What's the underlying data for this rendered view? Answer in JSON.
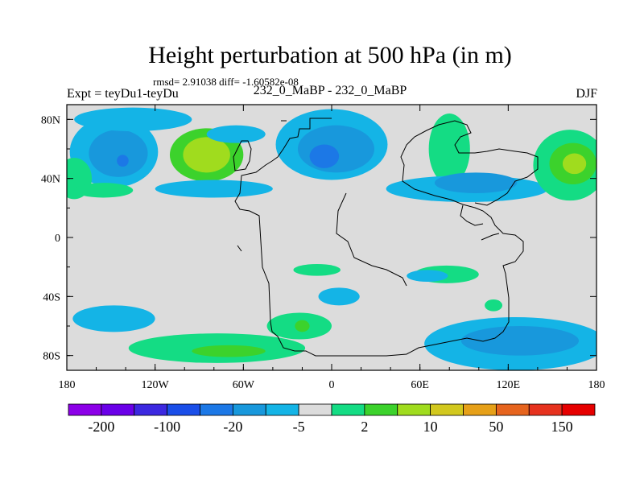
{
  "header": {
    "title": "Height perturbation at 500 hPa (in m)",
    "stats": "rmsd= 2.91038 diff= -1.60582e-08",
    "experiment": "Expt = teyDu1-teyDu",
    "case_label": "232_0_MaBP - 232_0_MaBP",
    "season": "DJF"
  },
  "chart_data": {
    "type": "heatmap",
    "title": "Height perturbation at 500 hPa (in m)",
    "projection": "cylindrical-equidistant",
    "xlim": [
      -180,
      180
    ],
    "ylim": [
      -90,
      90
    ],
    "x_ticks": [
      {
        "value": -180,
        "label": "180"
      },
      {
        "value": -120,
        "label": "120W"
      },
      {
        "value": -60,
        "label": "60W"
      },
      {
        "value": 0,
        "label": "0"
      },
      {
        "value": 60,
        "label": "60E"
      },
      {
        "value": 120,
        "label": "120E"
      },
      {
        "value": 180,
        "label": "180"
      }
    ],
    "y_ticks": [
      {
        "value": 80,
        "label": "80N"
      },
      {
        "value": 40,
        "label": "40N"
      },
      {
        "value": 0,
        "label": "0"
      },
      {
        "value": -40,
        "label": "40S"
      },
      {
        "value": -80,
        "label": "80S"
      }
    ],
    "colorbar": {
      "colors": [
        "#8c00e8",
        "#6a00e8",
        "#3c28e0",
        "#1a4ee8",
        "#1c78e6",
        "#1898dc",
        "#14b4e6",
        "#dcdcdc",
        "#14dc84",
        "#3cd22c",
        "#a0dc1e",
        "#d2c81e",
        "#e6a018",
        "#e6641e",
        "#e6321e",
        "#e60000"
      ],
      "labels": [
        {
          "after_index": 0,
          "text": "-200"
        },
        {
          "after_index": 2,
          "text": "-100"
        },
        {
          "after_index": 4,
          "text": "-20"
        },
        {
          "after_index": 6,
          "text": "-5"
        },
        {
          "after_index": 8,
          "text": "2"
        },
        {
          "after_index": 10,
          "text": "10"
        },
        {
          "after_index": 12,
          "text": "50"
        },
        {
          "after_index": 14,
          "text": "150"
        }
      ]
    },
    "regions": [
      {
        "lon": -148,
        "lat": 58,
        "rlon": 30,
        "rlat": 24,
        "level": 6,
        "name": "nw-pacific-cyan"
      },
      {
        "lon": -145,
        "lat": 57,
        "rlon": 20,
        "rlat": 16,
        "level": 5,
        "name": "nw-pacific-mid"
      },
      {
        "lon": -142,
        "lat": 52,
        "rlon": 4,
        "rlat": 4,
        "level": 4,
        "name": "nw-pacific-core"
      },
      {
        "lon": -135,
        "lat": 80,
        "rlon": 40,
        "rlat": 8,
        "level": 6,
        "name": "arctic-cyan-w"
      },
      {
        "lon": -175,
        "lat": 40,
        "rlon": 12,
        "rlat": 14,
        "level": 8,
        "name": "pacific-west-green"
      },
      {
        "lon": -155,
        "lat": 32,
        "rlon": 20,
        "rlat": 5,
        "level": 8,
        "name": "pacific-green-band"
      },
      {
        "lon": -85,
        "lat": 56,
        "rlon": 25,
        "rlat": 18,
        "level": 9,
        "name": "canada-green"
      },
      {
        "lon": -85,
        "lat": 56,
        "rlon": 16,
        "rlat": 12,
        "level": 10,
        "name": "canada-yellowgreen"
      },
      {
        "lon": -80,
        "lat": 33,
        "rlon": 40,
        "rlat": 6,
        "level": 6,
        "name": "us-cyan-band"
      },
      {
        "lon": -65,
        "lat": 70,
        "rlon": 20,
        "rlat": 6,
        "level": 6,
        "name": "greenland-cyan"
      },
      {
        "lon": 0,
        "lat": 63,
        "rlon": 38,
        "rlat": 24,
        "level": 6,
        "name": "europe-cyan"
      },
      {
        "lon": 3,
        "lat": 60,
        "rlon": 26,
        "rlat": 16,
        "level": 5,
        "name": "europe-mid"
      },
      {
        "lon": -5,
        "lat": 55,
        "rlon": 10,
        "rlat": 8,
        "level": 4,
        "name": "europe-core"
      },
      {
        "lon": 80,
        "lat": 60,
        "rlon": 14,
        "rlat": 24,
        "level": 8,
        "name": "siberia-green"
      },
      {
        "lon": 92,
        "lat": 33,
        "rlon": 55,
        "rlat": 9,
        "level": 6,
        "name": "asia-cyan-band"
      },
      {
        "lon": 98,
        "lat": 37,
        "rlon": 28,
        "rlat": 7,
        "level": 5,
        "name": "asia-mid"
      },
      {
        "lon": 162,
        "lat": 49,
        "rlon": 25,
        "rlat": 24,
        "level": 8,
        "name": "npacific-green"
      },
      {
        "lon": 164,
        "lat": 50,
        "rlon": 16,
        "rlat": 14,
        "level": 9,
        "name": "npacific-mid"
      },
      {
        "lon": 165,
        "lat": 50,
        "rlon": 8,
        "rlat": 7,
        "level": 10,
        "name": "npacific-core"
      },
      {
        "lon": -10,
        "lat": -22,
        "rlon": 16,
        "rlat": 4,
        "level": 8,
        "name": "sat-green"
      },
      {
        "lon": 78,
        "lat": -25,
        "rlon": 22,
        "rlat": 6,
        "level": 8,
        "name": "sio-green"
      },
      {
        "lon": 65,
        "lat": -26,
        "rlon": 14,
        "rlat": 4,
        "level": 6,
        "name": "sio-cyan"
      },
      {
        "lon": 5,
        "lat": -40,
        "rlon": 14,
        "rlat": 6,
        "level": 6,
        "name": "satl-cyan"
      },
      {
        "lon": 110,
        "lat": -46,
        "rlon": 6,
        "rlat": 4,
        "level": 8,
        "name": "aus-green"
      },
      {
        "lon": -148,
        "lat": -55,
        "rlon": 28,
        "rlat": 9,
        "level": 6,
        "name": "spac-cyan"
      },
      {
        "lon": -78,
        "lat": -75,
        "rlon": 60,
        "rlat": 10,
        "level": 8,
        "name": "antarctic-green-w"
      },
      {
        "lon": -70,
        "lat": -77,
        "rlon": 25,
        "rlat": 4,
        "level": 9,
        "name": "antarctic-green-w-core"
      },
      {
        "lon": -22,
        "lat": -60,
        "rlon": 22,
        "rlat": 9,
        "level": 8,
        "name": "soc-green"
      },
      {
        "lon": -20,
        "lat": -60,
        "rlon": 5,
        "rlat": 4,
        "level": 9,
        "name": "soc-core"
      },
      {
        "lon": 125,
        "lat": -72,
        "rlon": 62,
        "rlat": 18,
        "level": 6,
        "name": "antarctic-cyan-e"
      },
      {
        "lon": 128,
        "lat": -70,
        "rlon": 40,
        "rlat": 10,
        "level": 5,
        "name": "antarctic-blue-e"
      }
    ]
  }
}
